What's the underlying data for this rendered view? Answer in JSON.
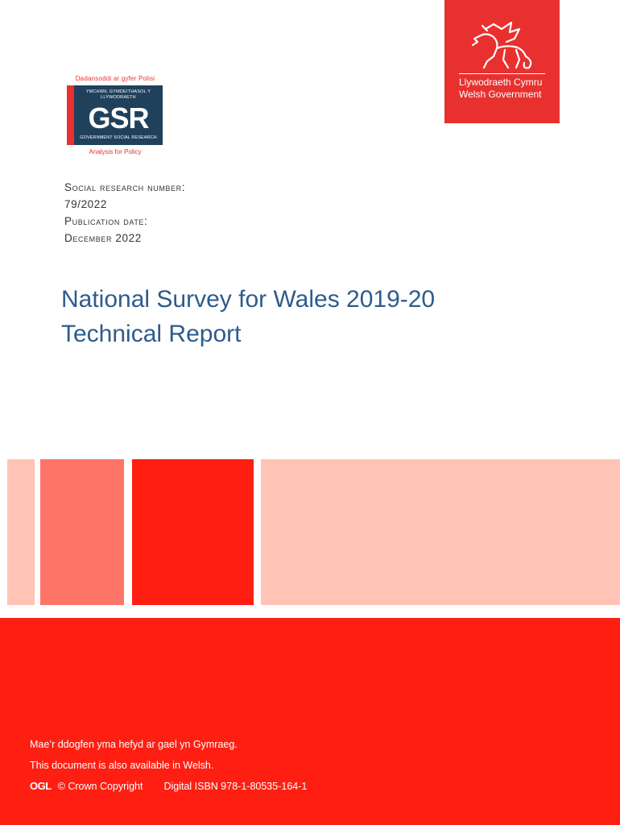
{
  "welsh_government": {
    "line1": "Llywodraeth Cymru",
    "line2": "Welsh Government",
    "emblem": "welsh-dragon-icon",
    "color": "#e8312f"
  },
  "gsr_logo": {
    "top_text": "Dadansoddi ar gyfer Polisi",
    "welsh_small": "YMCHWIL GYMDEITHASOL Y LLYWODRAETH",
    "acronym": "GSR",
    "english_small": "GOVERNMENT SOCIAL RESEARCH",
    "bottom_text": "Analysis for Policy",
    "colors": {
      "box": "#20415c",
      "accent": "#e8312f"
    }
  },
  "meta": {
    "srn_label": "Social Research Number:",
    "srn_value": "79/2022",
    "pub_label": "Publication date:",
    "pub_value": "December 2022"
  },
  "title": {
    "line1": "National Survey for Wales 2019-20",
    "line2": "Technical Report",
    "color": "#2e5b8c"
  },
  "decor_colors": [
    "#ffc4b5",
    "#ff7468",
    "#ff1f12",
    "#ffc4b5"
  ],
  "footer": {
    "welsh_note": "Mae’r ddogfen yma hefyd ar gael yn Gymraeg.",
    "english_note": "This document is also available in Welsh.",
    "ogl": "OGL",
    "copyright": "© Crown Copyright",
    "isbn": "Digital ISBN 978-1-80535-164-1",
    "band_color": "#ff1f12"
  }
}
